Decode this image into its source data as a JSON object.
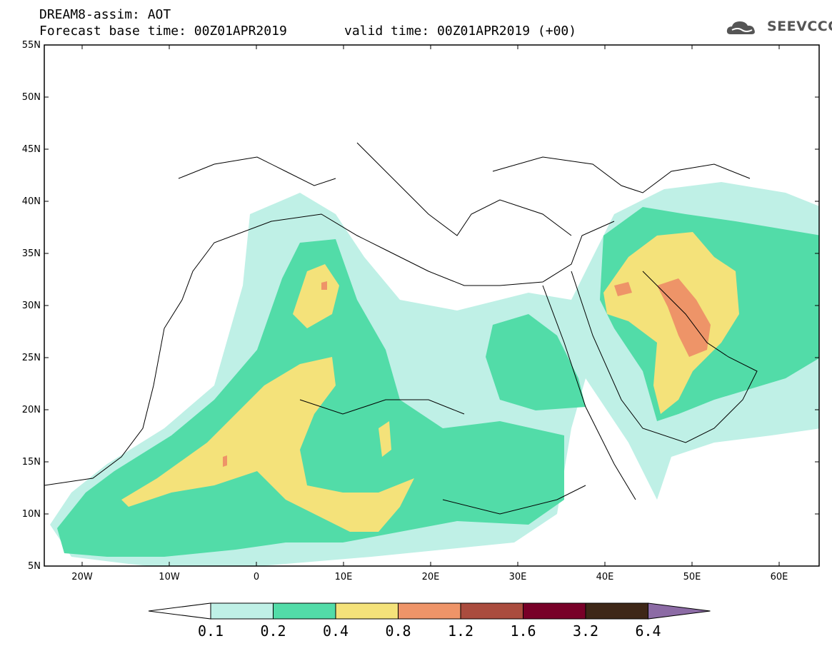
{
  "header": {
    "title": "DREAM8-assim: AOT",
    "base_time": "Forecast base time: 00Z01APR2019",
    "valid_time": "valid time: 00Z01APR2019 (+00)",
    "logo_text": "SEEVCCC",
    "logo_icon": "cloud-icon"
  },
  "map": {
    "lat_labels": [
      "55N",
      "50N",
      "45N",
      "40N",
      "35N",
      "30N",
      "25N",
      "20N",
      "15N",
      "10N",
      "5N"
    ],
    "lon_labels": [
      "20W",
      "10W",
      "0",
      "10E",
      "20E",
      "30E",
      "40E",
      "50E",
      "60E"
    ]
  },
  "colorbar": {
    "labels": [
      "0.1",
      "0.2",
      "0.4",
      "0.8",
      "1.2",
      "1.6",
      "3.2",
      "6.4"
    ],
    "colors": [
      "#ffffff",
      "#bff0e6",
      "#52dca8",
      "#f4e27a",
      "#ee9468",
      "#aa4c3e",
      "#780028",
      "#3e2717",
      "#8c6ba5"
    ]
  }
}
